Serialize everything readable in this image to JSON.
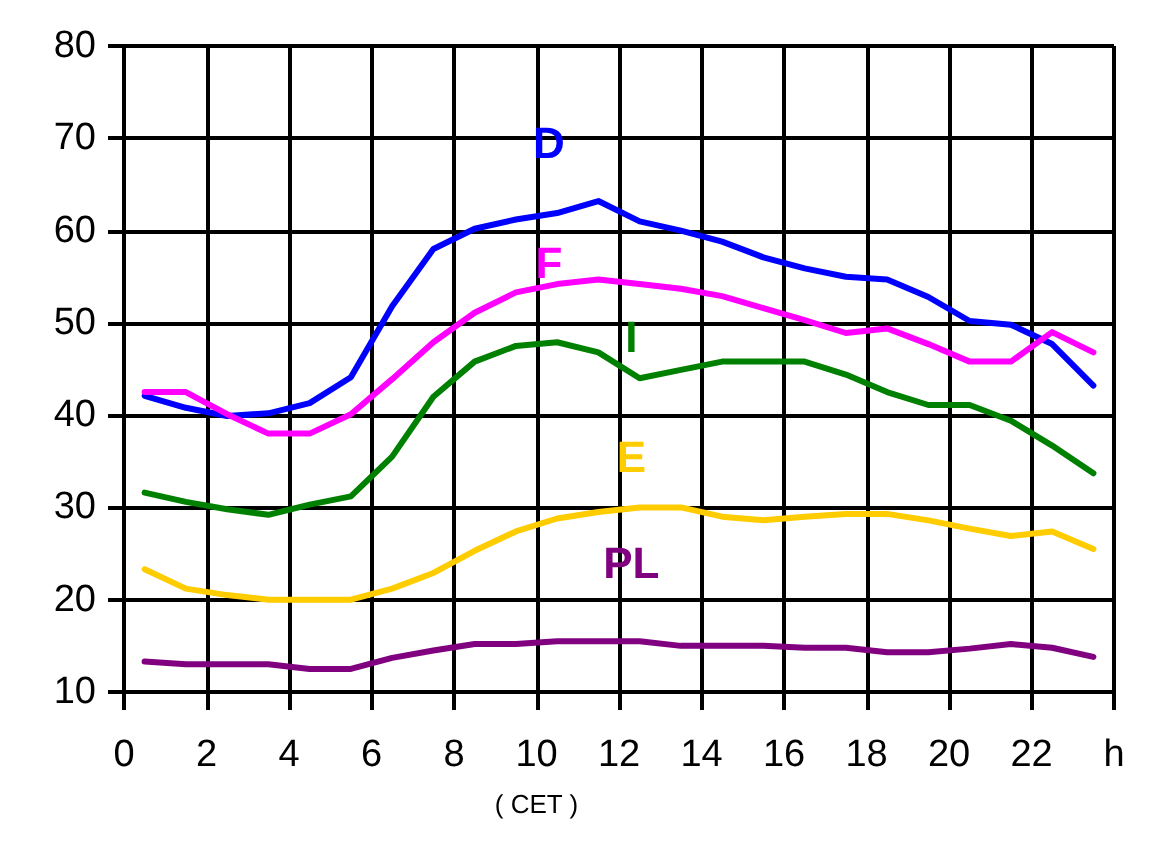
{
  "chart_data": {
    "type": "line",
    "xlabel": "( CET )",
    "x": [
      0.5,
      1.5,
      2.5,
      3.5,
      4.5,
      5.5,
      6.5,
      7.5,
      8.5,
      9.5,
      10.5,
      11.5,
      12.5,
      13.5,
      14.5,
      15.5,
      16.5,
      17.5,
      18.5,
      19.5,
      20.5,
      21.5,
      22.5,
      23.5
    ],
    "series": [
      {
        "name": "D",
        "color": "#0000ff",
        "values": [
          42.1,
          40.8,
          39.9,
          40.2,
          41.3,
          44.1,
          51.8,
          58,
          60.2,
          61.2,
          61.9,
          63.2,
          61,
          60,
          58.8,
          57.1,
          55.9,
          55,
          54.7,
          52.8,
          50.2,
          49.8,
          47.7,
          43.2
        ]
      },
      {
        "name": "F",
        "color": "#ff00ff",
        "values": [
          42.5,
          42.5,
          40.1,
          38,
          38,
          40.1,
          43.9,
          47.9,
          51.1,
          53.3,
          54.2,
          54.7,
          54.2,
          53.7,
          52.9,
          51.6,
          50.3,
          48.9,
          49.4,
          47.7,
          45.8,
          45.8,
          49,
          46.8
        ]
      },
      {
        "name": "I",
        "color": "#008000",
        "values": [
          31.6,
          30.6,
          29.8,
          29.2,
          30.3,
          31.2,
          35.5,
          42,
          45.8,
          47.5,
          47.9,
          46.8,
          44,
          44.9,
          45.8,
          45.8,
          45.8,
          44.4,
          42.5,
          41.1,
          41.1,
          39.4,
          36.7,
          33.7
        ]
      },
      {
        "name": "E",
        "color": "#ffcc00",
        "values": [
          23.3,
          21.2,
          20.5,
          20,
          20,
          20,
          21.2,
          22.9,
          25.3,
          27.4,
          28.8,
          29.5,
          30,
          30,
          29,
          28.6,
          29,
          29.3,
          29.3,
          28.6,
          27.7,
          26.9,
          27.4,
          25.5
        ]
      },
      {
        "name": "PL",
        "color": "#800080",
        "values": [
          13.3,
          13,
          13,
          13,
          12.5,
          12.5,
          13.7,
          14.5,
          15.2,
          15.2,
          15.5,
          15.5,
          15.5,
          15,
          15,
          15,
          14.8,
          14.8,
          14.3,
          14.3,
          14.7,
          15.2,
          14.8,
          13.8
        ]
      }
    ],
    "xlim": [
      0,
      24
    ],
    "xticks": [
      0,
      2,
      4,
      6,
      8,
      10,
      12,
      14,
      16,
      18,
      20,
      22,
      {
        "value": 24,
        "label": "h"
      }
    ],
    "ylim": [
      10,
      80
    ],
    "yticks": [
      10,
      20,
      30,
      40,
      50,
      60,
      70,
      80
    ],
    "grid": true,
    "legend": false,
    "marker": "none",
    "line_style": "solid"
  }
}
